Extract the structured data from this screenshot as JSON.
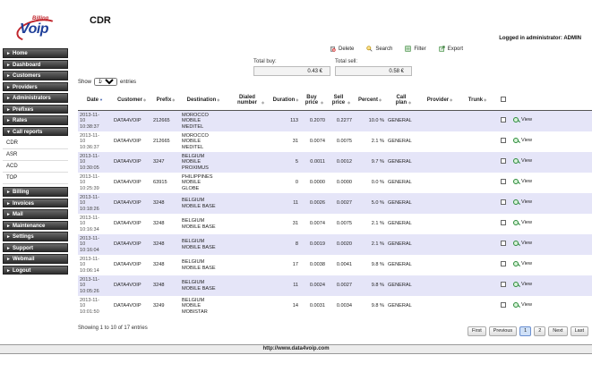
{
  "brand": {
    "billing": "Billing",
    "voip": "Voip"
  },
  "page_title": "CDR",
  "logged_in": "Logged in administrator: ADMIN",
  "toolbar": {
    "delete": "Delete",
    "search": "Search",
    "filter": "Filter",
    "export": "Export"
  },
  "totals": {
    "buy_label": "Total buy:",
    "buy_value": "0.43 €",
    "sell_label": "Total sell:",
    "sell_value": "0.58 €"
  },
  "sidebar": {
    "items": [
      "Home",
      "Dashboard",
      "Customers",
      "Providers",
      "Administrators",
      "Prefixes",
      "Rates",
      "Call reports"
    ],
    "call_reports_sub": [
      "CDR",
      "ASR",
      "ACD",
      "TOP"
    ],
    "items_after": [
      "Billing",
      "Invoices",
      "Mail",
      "Maintenance",
      "Settings",
      "Support",
      "Webmail",
      "Logout"
    ]
  },
  "show_entries": {
    "show": "Show",
    "value": "10",
    "entries": "entries"
  },
  "table": {
    "headers": [
      "Date",
      "Customer",
      "Prefix",
      "Destination",
      "Dialed number",
      "Duration",
      "Buy price",
      "Sell price",
      "Percent",
      "Call plan",
      "Provider",
      "Trunk"
    ],
    "view_label": "View",
    "rows": [
      {
        "date": "2013-11-\n10\n10:38:37",
        "customer": "DATA4VOIP",
        "prefix": "212665",
        "destination": "MOROCCO\nMOBILE\nMEDITEL",
        "dialed": "",
        "duration": "113",
        "buy": "0.2070",
        "sell": "0.2277",
        "percent": "10.0 %",
        "plan": "GENERAL",
        "provider": "",
        "trunk": ""
      },
      {
        "date": "2013-11-\n10\n10:36:37",
        "customer": "DATA4VOIP",
        "prefix": "212665",
        "destination": "MOROCCO\nMOBILE\nMEDITEL",
        "dialed": "",
        "duration": "31",
        "buy": "0.0074",
        "sell": "0.0075",
        "percent": "2.1 %",
        "plan": "GENERAL",
        "provider": "",
        "trunk": ""
      },
      {
        "date": "2013-11-\n10\n10:30:05",
        "customer": "DATA4VOIP",
        "prefix": "3247",
        "destination": "BELGIUM\nMOBILE\nPROXIMUS",
        "dialed": "",
        "duration": "5",
        "buy": "0.0011",
        "sell": "0.0012",
        "percent": "9.7 %",
        "plan": "GENERAL",
        "provider": "",
        "trunk": ""
      },
      {
        "date": "2013-11-\n10\n10:25:39",
        "customer": "DATA4VOIP",
        "prefix": "63915",
        "destination": "PHILIPPINES\nMOBILE\nGLOBE",
        "dialed": "",
        "duration": "0",
        "buy": "0.0000",
        "sell": "0.0000",
        "percent": "0.0 %",
        "plan": "GENERAL",
        "provider": "",
        "trunk": ""
      },
      {
        "date": "2013-11-\n10\n10:18:26",
        "customer": "DATA4VOIP",
        "prefix": "3248",
        "destination": "BELGIUM\nMOBILE BASE",
        "dialed": "",
        "duration": "11",
        "buy": "0.0026",
        "sell": "0.0027",
        "percent": "5.0 %",
        "plan": "GENERAL",
        "provider": "",
        "trunk": ""
      },
      {
        "date": "2013-11-\n10\n10:16:34",
        "customer": "DATA4VOIP",
        "prefix": "3248",
        "destination": "BELGIUM\nMOBILE BASE",
        "dialed": "",
        "duration": "31",
        "buy": "0.0074",
        "sell": "0.0075",
        "percent": "2.1 %",
        "plan": "GENERAL",
        "provider": "",
        "trunk": ""
      },
      {
        "date": "2013-11-\n10\n10:16:04",
        "customer": "DATA4VOIP",
        "prefix": "3248",
        "destination": "BELGIUM\nMOBILE BASE",
        "dialed": "",
        "duration": "8",
        "buy": "0.0019",
        "sell": "0.0020",
        "percent": "2.1 %",
        "plan": "GENERAL",
        "provider": "",
        "trunk": ""
      },
      {
        "date": "2013-11-\n10\n10:06:14",
        "customer": "DATA4VOIP",
        "prefix": "3248",
        "destination": "BELGIUM\nMOBILE BASE",
        "dialed": "",
        "duration": "17",
        "buy": "0.0038",
        "sell": "0.0041",
        "percent": "9.8 %",
        "plan": "GENERAL",
        "provider": "",
        "trunk": ""
      },
      {
        "date": "2013-11-\n10\n10:05:26",
        "customer": "DATA4VOIP",
        "prefix": "3248",
        "destination": "BELGIUM\nMOBILE BASE",
        "dialed": "",
        "duration": "11",
        "buy": "0.0024",
        "sell": "0.0027",
        "percent": "9.8 %",
        "plan": "GENERAL",
        "provider": "",
        "trunk": ""
      },
      {
        "date": "2013-11-\n10\n10:01:50",
        "customer": "DATA4VOIP",
        "prefix": "3249",
        "destination": "BELGIUM\nMOBILE\nMOBISTAR",
        "dialed": "",
        "duration": "14",
        "buy": "0.0031",
        "sell": "0.0034",
        "percent": "9.8 %",
        "plan": "GENERAL",
        "provider": "",
        "trunk": ""
      }
    ]
  },
  "info": "Showing 1 to 10 of 17 entries",
  "pagination": {
    "first": "First",
    "previous": "Previous",
    "p1": "1",
    "p2": "2",
    "next": "Next",
    "last": "Last"
  },
  "footer": "http://www.data4voip.com",
  "colors": {
    "row_alt": "#e5e5f8",
    "nav_bg": "#3a3a3a",
    "brand_red": "#c0262d",
    "brand_blue": "#1f3f99"
  }
}
